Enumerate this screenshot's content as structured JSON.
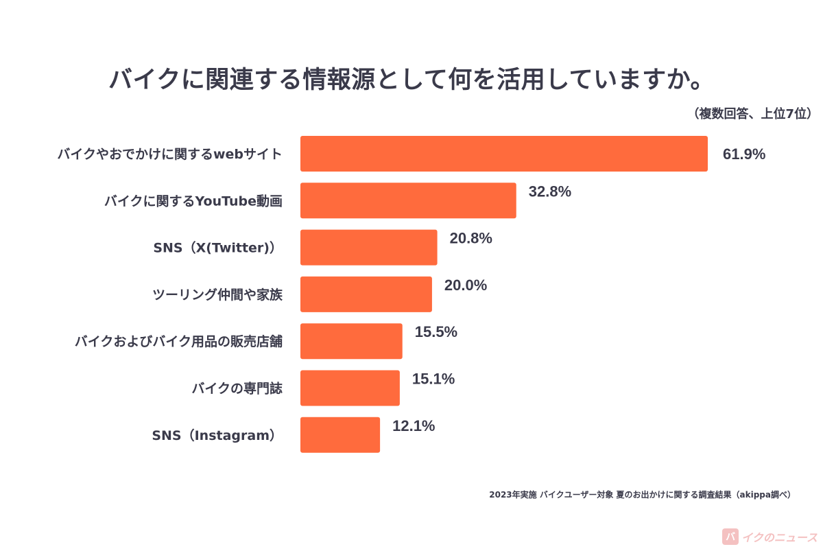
{
  "chart_data": {
    "type": "bar",
    "orientation": "horizontal",
    "title": "バイクに関連する情報源として何を活用していますか。",
    "subtitle": "（複数回答、上位7位）",
    "categories": [
      "バイクやおでかけに関するwebサイト",
      "バイクに関するYouTube動画",
      "SNS（X(Twitter)）",
      "ツーリング仲間や家族",
      "バイクおよびバイク用品の販売店舗",
      "バイクの専門誌",
      "SNS（Instagram）"
    ],
    "values": [
      61.9,
      32.8,
      20.8,
      20.0,
      15.5,
      15.1,
      12.1
    ],
    "value_labels": [
      "61.9%",
      "32.8%",
      "20.8%",
      "20.0%",
      "15.5%",
      "15.1%",
      "12.1%"
    ],
    "unit": "%",
    "xlim": [
      0,
      61.9
    ],
    "grid": false,
    "bar_color": "#ff6b3d"
  },
  "source": "2023年実施 バイクユーザー対象 夏のお出かけに関する調査結果（akippa調べ）",
  "logo": {
    "mark": "バ",
    "text": "イクのニュース"
  }
}
